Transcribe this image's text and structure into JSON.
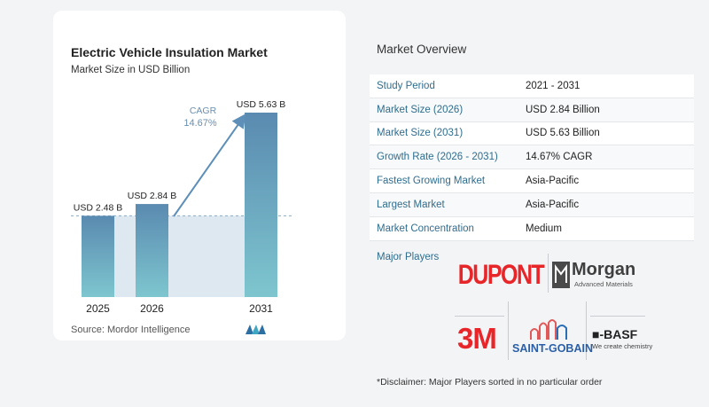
{
  "chart_data": {
    "type": "bar",
    "title": "Electric Vehicle Insulation Market",
    "subtitle": "Market Size in USD Billion",
    "categories": [
      "2025",
      "2026",
      "2031"
    ],
    "values": [
      2.48,
      2.84,
      5.63
    ],
    "data_labels": [
      "USD 2.48 B",
      "USD 2.84 B",
      "USD 5.63 B"
    ],
    "cagr_label": "CAGR",
    "cagr_value": "14.67%",
    "ylim": [
      0,
      5.63
    ],
    "grid": false,
    "colors": {
      "bar_top": "#5a8ab0",
      "bar_bottom": "#7ec6cf",
      "arrow": "#5d8fb8",
      "band": "#dde8f1"
    }
  },
  "source": "Source:  Mordor Intelligence",
  "overview": {
    "title": "Market Overview",
    "rows": [
      {
        "label": "Study Period",
        "value": "2021 - 2031"
      },
      {
        "label": "Market Size (2026)",
        "value": "USD 2.84 Billion"
      },
      {
        "label": "Market Size (2031)",
        "value": "USD 5.63 Billion"
      },
      {
        "label": "Growth Rate (2026 - 2031)",
        "value": "14.67% CAGR"
      },
      {
        "label": "Fastest Growing Market",
        "value": "Asia-Pacific"
      },
      {
        "label": "Largest Market",
        "value": "Asia-Pacific"
      },
      {
        "label": "Market Concentration",
        "value": "Medium"
      }
    ]
  },
  "players": {
    "label": "Major Players",
    "dupont": "DUPONT",
    "morgan": "Morgan",
    "morgan_sub": "Advanced Materials",
    "threem": "3M",
    "saint_gobain": "SAINT-GOBAIN",
    "basf": "■-BASF",
    "basf_sub": "We create chemistry"
  },
  "disclaimer": "*Disclaimer: Major Players sorted in no particular order"
}
